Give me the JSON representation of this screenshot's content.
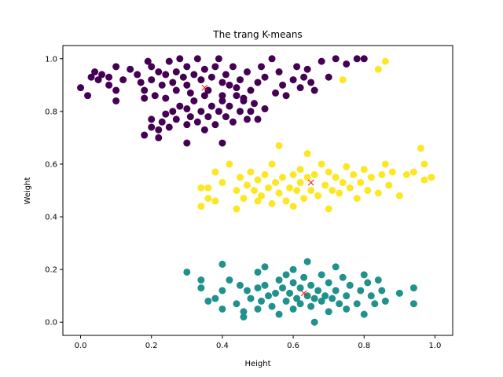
{
  "chart_data": {
    "type": "scatter",
    "title": "The trang K-means",
    "xlabel": "Height",
    "ylabel": "Weight",
    "xlim": [
      -0.05,
      1.05
    ],
    "ylim": [
      -0.05,
      1.05
    ],
    "xticks": [
      "0.0",
      "0.2",
      "0.4",
      "0.6",
      "0.8",
      "1.0"
    ],
    "yticks": [
      "0.0",
      "0.2",
      "0.4",
      "0.6",
      "0.8",
      "1.0"
    ],
    "xtick_values": [
      0.0,
      0.2,
      0.4,
      0.6,
      0.8,
      1.0
    ],
    "ytick_values": [
      0.0,
      0.2,
      0.4,
      0.6,
      0.8,
      1.0
    ],
    "grid": false,
    "clusters": [
      {
        "color": "#440154",
        "centroid": [
          0.35,
          0.89
        ],
        "points": [
          [
            0.0,
            0.89
          ],
          [
            0.02,
            0.86
          ],
          [
            0.03,
            0.93
          ],
          [
            0.04,
            0.95
          ],
          [
            0.05,
            0.92
          ],
          [
            0.06,
            0.94
          ],
          [
            0.08,
            0.9
          ],
          [
            0.08,
            0.93
          ],
          [
            0.1,
            0.84
          ],
          [
            0.1,
            0.88
          ],
          [
            0.1,
            0.97
          ],
          [
            0.12,
            0.92
          ],
          [
            0.14,
            0.96
          ],
          [
            0.16,
            0.94
          ],
          [
            0.17,
            0.91
          ],
          [
            0.18,
            0.88
          ],
          [
            0.18,
            0.85
          ],
          [
            0.19,
            0.99
          ],
          [
            0.2,
            0.92
          ],
          [
            0.2,
            0.97
          ],
          [
            0.21,
            0.86
          ],
          [
            0.22,
            0.95
          ],
          [
            0.23,
            0.9
          ],
          [
            0.24,
            0.85
          ],
          [
            0.24,
            0.94
          ],
          [
            0.25,
            0.99
          ],
          [
            0.26,
            0.91
          ],
          [
            0.27,
            0.95
          ],
          [
            0.27,
            0.88
          ],
          [
            0.28,
            1.0
          ],
          [
            0.29,
            0.93
          ],
          [
            0.3,
            0.97
          ],
          [
            0.3,
            0.9
          ],
          [
            0.31,
            0.87
          ],
          [
            0.32,
            0.94
          ],
          [
            0.33,
            1.0
          ],
          [
            0.34,
            0.92
          ],
          [
            0.35,
            0.96
          ],
          [
            0.36,
            0.88
          ],
          [
            0.37,
            0.93
          ],
          [
            0.38,
            0.97
          ],
          [
            0.39,
            1.0
          ],
          [
            0.4,
            0.91
          ],
          [
            0.4,
            0.86
          ],
          [
            0.41,
            0.94
          ],
          [
            0.42,
            0.9
          ],
          [
            0.43,
            0.97
          ],
          [
            0.44,
            0.89
          ],
          [
            0.45,
            0.92
          ],
          [
            0.46,
            0.85
          ],
          [
            0.47,
            0.95
          ],
          [
            0.48,
            0.88
          ],
          [
            0.5,
            0.91
          ],
          [
            0.51,
            0.97
          ],
          [
            0.52,
            0.93
          ],
          [
            0.54,
            1.0
          ],
          [
            0.55,
            0.87
          ],
          [
            0.56,
            0.95
          ],
          [
            0.57,
            0.9
          ],
          [
            0.58,
            0.86
          ],
          [
            0.6,
            0.92
          ],
          [
            0.61,
            0.97
          ],
          [
            0.62,
            0.89
          ],
          [
            0.63,
            0.93
          ],
          [
            0.64,
            0.96
          ],
          [
            0.65,
            0.91
          ],
          [
            0.66,
            0.88
          ],
          [
            0.68,
            0.99
          ],
          [
            0.7,
            0.93
          ],
          [
            0.72,
            1.0
          ],
          [
            0.75,
            0.98
          ],
          [
            0.78,
            1.0
          ],
          [
            0.8,
            1.0
          ],
          [
            0.18,
            0.71
          ],
          [
            0.2,
            0.74
          ],
          [
            0.2,
            0.77
          ],
          [
            0.22,
            0.73
          ],
          [
            0.22,
            0.7
          ],
          [
            0.23,
            0.76
          ],
          [
            0.24,
            0.79
          ],
          [
            0.25,
            0.74
          ],
          [
            0.26,
            0.8
          ],
          [
            0.27,
            0.77
          ],
          [
            0.28,
            0.82
          ],
          [
            0.3,
            0.68
          ],
          [
            0.3,
            0.75
          ],
          [
            0.3,
            0.81
          ],
          [
            0.31,
            0.78
          ],
          [
            0.32,
            0.84
          ],
          [
            0.33,
            0.76
          ],
          [
            0.34,
            0.8
          ],
          [
            0.35,
            0.86
          ],
          [
            0.35,
            0.73
          ],
          [
            0.36,
            0.78
          ],
          [
            0.37,
            0.82
          ],
          [
            0.38,
            0.75
          ],
          [
            0.39,
            0.8
          ],
          [
            0.4,
            0.68
          ],
          [
            0.4,
            0.84
          ],
          [
            0.41,
            0.78
          ],
          [
            0.42,
            0.82
          ],
          [
            0.43,
            0.76
          ],
          [
            0.44,
            0.86
          ],
          [
            0.45,
            0.8
          ],
          [
            0.46,
            0.84
          ],
          [
            0.47,
            0.77
          ],
          [
            0.48,
            0.8
          ],
          [
            0.49,
            0.83
          ],
          [
            0.5,
            0.77
          ],
          [
            0.52,
            0.81
          ]
        ]
      },
      {
        "color": "#21918c",
        "centroid": [
          0.63,
          0.11
        ],
        "points": [
          [
            0.3,
            0.19
          ],
          [
            0.34,
            0.13
          ],
          [
            0.34,
            0.16
          ],
          [
            0.36,
            0.08
          ],
          [
            0.38,
            0.09
          ],
          [
            0.4,
            0.05
          ],
          [
            0.4,
            0.22
          ],
          [
            0.4,
            0.12
          ],
          [
            0.42,
            0.16
          ],
          [
            0.44,
            0.07
          ],
          [
            0.45,
            0.14
          ],
          [
            0.46,
            0.04
          ],
          [
            0.46,
            0.02
          ],
          [
            0.47,
            0.12
          ],
          [
            0.48,
            0.09
          ],
          [
            0.5,
            0.05
          ],
          [
            0.5,
            0.13
          ],
          [
            0.5,
            0.19
          ],
          [
            0.51,
            0.08
          ],
          [
            0.52,
            0.14
          ],
          [
            0.52,
            0.21
          ],
          [
            0.53,
            0.1
          ],
          [
            0.54,
            0.06
          ],
          [
            0.55,
            0.11
          ],
          [
            0.56,
            0.16
          ],
          [
            0.56,
            0.03
          ],
          [
            0.57,
            0.13
          ],
          [
            0.58,
            0.08
          ],
          [
            0.58,
            0.18
          ],
          [
            0.59,
            0.11
          ],
          [
            0.6,
            0.05
          ],
          [
            0.6,
            0.15
          ],
          [
            0.6,
            0.2
          ],
          [
            0.61,
            0.09
          ],
          [
            0.62,
            0.13
          ],
          [
            0.62,
            0.07
          ],
          [
            0.63,
            0.17
          ],
          [
            0.64,
            0.1
          ],
          [
            0.64,
            0.23
          ],
          [
            0.65,
            0.06
          ],
          [
            0.65,
            0.14
          ],
          [
            0.66,
            0.09
          ],
          [
            0.66,
            0.0
          ],
          [
            0.67,
            0.12
          ],
          [
            0.68,
            0.18
          ],
          [
            0.68,
            0.08
          ],
          [
            0.69,
            0.1
          ],
          [
            0.7,
            0.15
          ],
          [
            0.7,
            0.04
          ],
          [
            0.71,
            0.09
          ],
          [
            0.72,
            0.21
          ],
          [
            0.72,
            0.12
          ],
          [
            0.73,
            0.07
          ],
          [
            0.74,
            0.17
          ],
          [
            0.75,
            0.1
          ],
          [
            0.75,
            0.05
          ],
          [
            0.76,
            0.14
          ],
          [
            0.78,
            0.07
          ],
          [
            0.79,
            0.12
          ],
          [
            0.8,
            0.03
          ],
          [
            0.8,
            0.18
          ],
          [
            0.81,
            0.15
          ],
          [
            0.82,
            0.1
          ],
          [
            0.83,
            0.07
          ],
          [
            0.84,
            0.16
          ],
          [
            0.85,
            0.12
          ],
          [
            0.86,
            0.08
          ],
          [
            0.9,
            0.11
          ],
          [
            0.94,
            0.07
          ],
          [
            0.94,
            0.13
          ]
        ]
      },
      {
        "color": "#fde725",
        "centroid": [
          0.65,
          0.53
        ],
        "points": [
          [
            0.34,
            0.44
          ],
          [
            0.34,
            0.51
          ],
          [
            0.36,
            0.47
          ],
          [
            0.36,
            0.51
          ],
          [
            0.38,
            0.57
          ],
          [
            0.38,
            0.46
          ],
          [
            0.4,
            0.53
          ],
          [
            0.42,
            0.6
          ],
          [
            0.44,
            0.43
          ],
          [
            0.44,
            0.5
          ],
          [
            0.45,
            0.55
          ],
          [
            0.46,
            0.47
          ],
          [
            0.47,
            0.52
          ],
          [
            0.48,
            0.57
          ],
          [
            0.49,
            0.5
          ],
          [
            0.5,
            0.46
          ],
          [
            0.5,
            0.54
          ],
          [
            0.51,
            0.48
          ],
          [
            0.52,
            0.56
          ],
          [
            0.53,
            0.51
          ],
          [
            0.54,
            0.45
          ],
          [
            0.54,
            0.6
          ],
          [
            0.55,
            0.53
          ],
          [
            0.56,
            0.67
          ],
          [
            0.56,
            0.49
          ],
          [
            0.57,
            0.55
          ],
          [
            0.58,
            0.46
          ],
          [
            0.59,
            0.51
          ],
          [
            0.6,
            0.56
          ],
          [
            0.6,
            0.44
          ],
          [
            0.61,
            0.5
          ],
          [
            0.62,
            0.58
          ],
          [
            0.62,
            0.53
          ],
          [
            0.63,
            0.47
          ],
          [
            0.64,
            0.64
          ],
          [
            0.64,
            0.55
          ],
          [
            0.65,
            0.5
          ],
          [
            0.66,
            0.56
          ],
          [
            0.67,
            0.48
          ],
          [
            0.68,
            0.6
          ],
          [
            0.69,
            0.52
          ],
          [
            0.7,
            0.43
          ],
          [
            0.7,
            0.57
          ],
          [
            0.71,
            0.5
          ],
          [
            0.72,
            0.55
          ],
          [
            0.73,
            0.49
          ],
          [
            0.74,
            0.53
          ],
          [
            0.75,
            0.59
          ],
          [
            0.76,
            0.51
          ],
          [
            0.77,
            0.56
          ],
          [
            0.78,
            0.47
          ],
          [
            0.79,
            0.53
          ],
          [
            0.8,
            0.58
          ],
          [
            0.81,
            0.5
          ],
          [
            0.82,
            0.55
          ],
          [
            0.84,
            0.49
          ],
          [
            0.85,
            0.56
          ],
          [
            0.86,
            0.6
          ],
          [
            0.87,
            0.52
          ],
          [
            0.88,
            0.57
          ],
          [
            0.9,
            0.48
          ],
          [
            0.92,
            0.56
          ],
          [
            0.94,
            0.57
          ],
          [
            0.96,
            0.66
          ],
          [
            0.97,
            0.54
          ],
          [
            0.97,
            0.6
          ],
          [
            0.99,
            0.55
          ],
          [
            0.86,
            0.99
          ],
          [
            0.84,
            0.96
          ],
          [
            0.74,
            0.92
          ]
        ]
      }
    ]
  }
}
